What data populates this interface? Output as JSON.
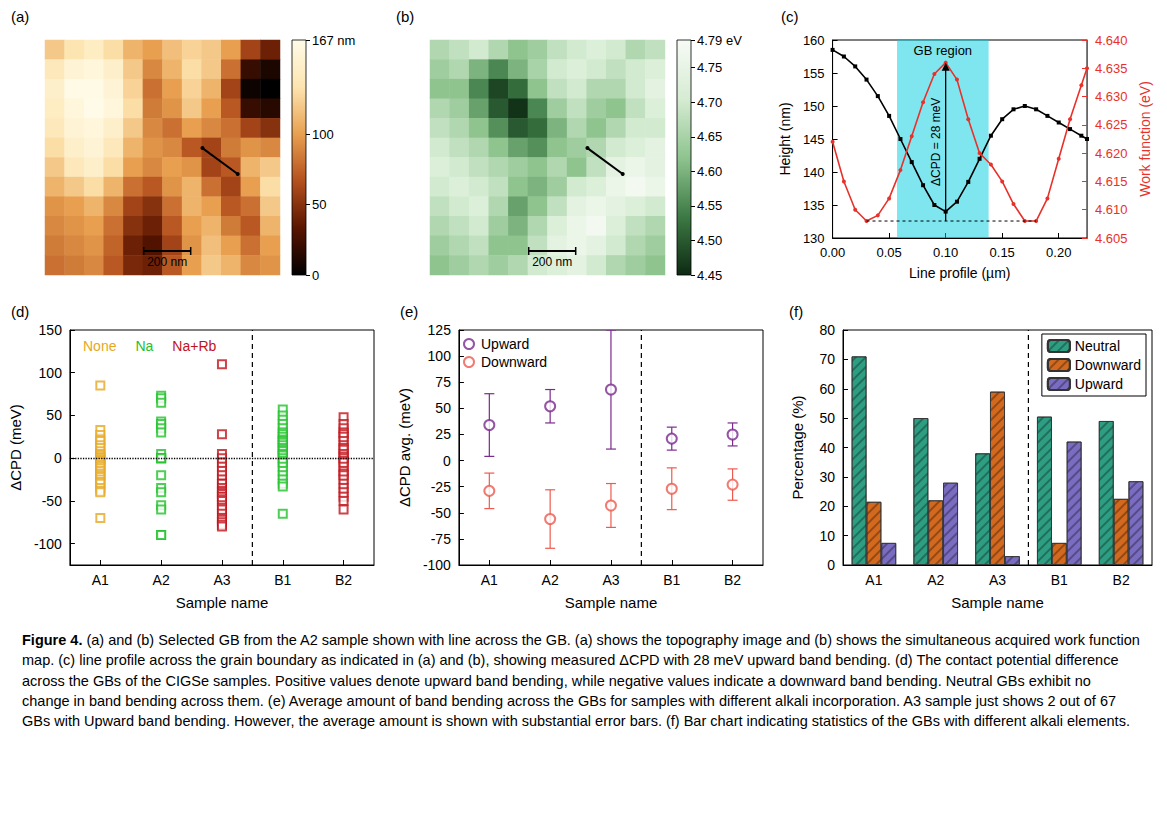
{
  "chart_data": [
    {
      "type": "heatmap",
      "panel": "(a)",
      "cells": [
        [
          120,
          135,
          145,
          130,
          110,
          100,
          115,
          125,
          120,
          100,
          60,
          40
        ],
        [
          140,
          155,
          160,
          150,
          120,
          90,
          110,
          130,
          120,
          80,
          20,
          10
        ],
        [
          150,
          165,
          165,
          155,
          125,
          80,
          100,
          125,
          110,
          60,
          5,
          0
        ],
        [
          145,
          160,
          167,
          160,
          130,
          85,
          95,
          120,
          100,
          70,
          20,
          15
        ],
        [
          140,
          155,
          160,
          150,
          120,
          90,
          80,
          100,
          90,
          80,
          60,
          50
        ],
        [
          130,
          150,
          155,
          140,
          110,
          95,
          90,
          70,
          60,
          85,
          95,
          90
        ],
        [
          120,
          140,
          150,
          130,
          100,
          90,
          100,
          95,
          60,
          70,
          110,
          120
        ],
        [
          110,
          120,
          130,
          110,
          80,
          70,
          95,
          110,
          80,
          60,
          100,
          130
        ],
        [
          95,
          100,
          110,
          90,
          60,
          50,
          80,
          110,
          100,
          70,
          80,
          120
        ],
        [
          90,
          95,
          100,
          80,
          50,
          40,
          70,
          100,
          110,
          85,
          70,
          110
        ],
        [
          85,
          90,
          95,
          75,
          40,
          30,
          60,
          95,
          115,
          100,
          80,
          100
        ],
        [
          80,
          85,
          90,
          70,
          45,
          40,
          70,
          100,
          120,
          110,
          90,
          95
        ]
      ],
      "colorbar": {
        "range": [
          0,
          167
        ],
        "ticks": [
          0,
          50,
          100,
          {
            "value": 167,
            "label": "167 nm"
          }
        ]
      },
      "field_of_view": [
        1000,
        1000
      ],
      "scale_bar": {
        "label": "200 nm",
        "length": 200
      },
      "profile_line": {
        "from": [
          670,
          460
        ],
        "to": [
          820,
          570
        ]
      }
    },
    {
      "type": "heatmap",
      "panel": "(b)",
      "cells": [
        [
          4.66,
          4.68,
          4.7,
          4.66,
          4.62,
          4.64,
          4.68,
          4.7,
          4.72,
          4.7,
          4.66,
          4.68
        ],
        [
          4.64,
          4.66,
          4.6,
          4.55,
          4.6,
          4.65,
          4.7,
          4.72,
          4.7,
          4.68,
          4.7,
          4.72
        ],
        [
          4.62,
          4.62,
          4.55,
          4.48,
          4.52,
          4.62,
          4.68,
          4.7,
          4.66,
          4.66,
          4.7,
          4.74
        ],
        [
          4.66,
          4.64,
          4.58,
          4.5,
          4.46,
          4.55,
          4.64,
          4.68,
          4.64,
          4.62,
          4.68,
          4.72
        ],
        [
          4.68,
          4.66,
          4.62,
          4.56,
          4.5,
          4.52,
          4.6,
          4.66,
          4.62,
          4.66,
          4.7,
          4.7
        ],
        [
          4.7,
          4.68,
          4.66,
          4.62,
          4.58,
          4.56,
          4.62,
          4.64,
          4.66,
          4.7,
          4.72,
          4.74
        ],
        [
          4.72,
          4.7,
          4.68,
          4.66,
          4.64,
          4.62,
          4.66,
          4.62,
          4.68,
          4.74,
          4.76,
          4.74
        ],
        [
          4.7,
          4.72,
          4.7,
          4.68,
          4.62,
          4.6,
          4.64,
          4.7,
          4.72,
          4.76,
          4.78,
          4.76
        ],
        [
          4.68,
          4.7,
          4.72,
          4.66,
          4.58,
          4.62,
          4.68,
          4.74,
          4.76,
          4.74,
          4.72,
          4.7
        ],
        [
          4.66,
          4.68,
          4.7,
          4.64,
          4.6,
          4.66,
          4.72,
          4.76,
          4.78,
          4.72,
          4.68,
          4.66
        ],
        [
          4.64,
          4.66,
          4.68,
          4.62,
          4.62,
          4.68,
          4.74,
          4.76,
          4.74,
          4.7,
          4.66,
          4.64
        ],
        [
          4.62,
          4.64,
          4.66,
          4.64,
          4.66,
          4.7,
          4.72,
          4.74,
          4.7,
          4.66,
          4.64,
          4.62
        ]
      ],
      "colorbar": {
        "range": [
          4.45,
          4.79
        ],
        "ticks": [
          4.45,
          {
            "value": 4.5,
            "label": "4.50"
          },
          4.55,
          {
            "value": 4.6,
            "label": "4.60"
          },
          4.65,
          {
            "value": 4.7,
            "label": "4.70"
          },
          4.75,
          {
            "value": 4.79,
            "label": "4.79 eV"
          }
        ]
      },
      "field_of_view": [
        1000,
        1000
      ],
      "scale_bar": {
        "label": "200 nm",
        "length": 200
      },
      "profile_line": {
        "from": [
          670,
          460
        ],
        "to": [
          820,
          570
        ]
      }
    },
    {
      "type": "line",
      "panel": "(c)",
      "x": [
        0,
        0.01,
        0.02,
        0.03,
        0.04,
        0.05,
        0.06,
        0.07,
        0.08,
        0.09,
        0.1,
        0.11,
        0.12,
        0.13,
        0.14,
        0.15,
        0.16,
        0.17,
        0.18,
        0.19,
        0.2,
        0.21,
        0.22,
        0.225
      ],
      "series": [
        {
          "color": "#000000",
          "marker": "square",
          "values": [
            158.5,
            157.5,
            156,
            154,
            151.5,
            148.5,
            145,
            141.5,
            138,
            135,
            134,
            135.5,
            138.5,
            142,
            145.5,
            148,
            149.5,
            150,
            149.5,
            148.5,
            147.5,
            146.5,
            145.5,
            145
          ]
        },
        {
          "color": "#e8312a",
          "marker": "circle",
          "axis": "y2",
          "values": [
            4.622,
            4.615,
            4.61,
            4.608,
            4.609,
            4.612,
            4.617,
            4.623,
            4.629,
            4.634,
            4.636,
            4.633,
            4.626,
            4.62,
            4.618,
            4.615,
            4.611,
            4.608,
            4.608,
            4.612,
            4.619,
            4.626,
            4.632,
            4.635
          ]
        }
      ],
      "xlabel": "Line profile (µm)",
      "ylabel": "Height (nm)",
      "y2label": "Work function (eV)",
      "xlim": [
        0,
        0.225
      ],
      "xticks": [
        {
          "value": 0,
          "label": "0.00"
        },
        0.05,
        {
          "value": 0.1,
          "label": "0.10"
        },
        0.15,
        {
          "value": 0.2,
          "label": "0.20"
        }
      ],
      "ylim": [
        130,
        160
      ],
      "yticks": [
        130,
        135,
        140,
        145,
        150,
        155,
        160
      ],
      "y2lim": [
        4.605,
        4.64
      ],
      "y2ticks": [
        4.605,
        {
          "value": 4.61,
          "label": "4.610"
        },
        4.615,
        {
          "value": 4.62,
          "label": "4.620"
        },
        4.625,
        {
          "value": 4.63,
          "label": "4.630"
        },
        4.635,
        {
          "value": 4.64,
          "label": "4.640"
        }
      ],
      "shaded_region": {
        "x": [
          0.057,
          0.138
        ],
        "label": "GB region"
      },
      "annotation": {
        "text": "ΔCPD = 28 meV",
        "x": 0.1,
        "y": [
          4.608,
          4.636
        ],
        "baseline_x": [
          0.03,
          0.18
        ],
        "axis": "y2"
      },
      "grid": false
    },
    {
      "type": "scatter",
      "panel": "(d)",
      "categories": [
        "A1",
        "A2",
        "A3",
        "B1",
        "B2"
      ],
      "groups": [
        [
          "A1",
          "A2",
          "A3"
        ],
        [
          "B1",
          "B2"
        ]
      ],
      "series": [
        {
          "name": "None",
          "color": "#e6a820",
          "values": [
            [
              85,
              33,
              27,
              22,
              20,
              15,
              12,
              8,
              5,
              3,
              1,
              0,
              -2,
              -3,
              -5,
              -8,
              -10,
              -12,
              -15,
              -18,
              -20,
              -22,
              -25,
              -28,
              -30,
              -35,
              -38,
              -40,
              -70
            ],
            [],
            [],
            [],
            []
          ]
        },
        {
          "name": "Na",
          "color": "#22c22a",
          "values": [
            [],
            [
              73,
              70,
              65,
              43,
              40,
              35,
              30,
              5,
              0,
              0,
              0,
              -20,
              -35,
              -40,
              -55,
              -60,
              -90,
              -90
            ],
            [],
            [
              57,
              50,
              45,
              40,
              35,
              30,
              28,
              25,
              22,
              20,
              18,
              15,
              12,
              10,
              8,
              5,
              3,
              0,
              -3,
              -5,
              -10,
              -15,
              -20,
              -25,
              -30,
              -33,
              -65
            ],
            []
          ]
        },
        {
          "name": "Na+Rb",
          "color": "#c0141c",
          "values": [
            [],
            [],
            [
              110,
              28,
              5,
              0,
              -5,
              -10,
              -15,
              -20,
              -25,
              -30,
              -30,
              -35,
              -38,
              -40,
              -42,
              -45,
              -45,
              -48,
              -50,
              -55,
              -58,
              -60,
              -65,
              -70,
              -72,
              -75,
              -78,
              -80
            ],
            [],
            [
              48,
              40,
              35,
              30,
              28,
              25,
              20,
              15,
              12,
              10,
              5,
              2,
              0,
              -3,
              -5,
              -10,
              -15,
              -18,
              -20,
              -25,
              -30,
              -35,
              -40,
              -45,
              -50,
              -60
            ]
          ]
        }
      ],
      "xlabel": "Sample name",
      "ylabel": "ΔCPD (meV)",
      "ylim": [
        -125,
        150
      ],
      "yticks": [
        -100,
        -50,
        0,
        50,
        100,
        150
      ],
      "reference_line": 0,
      "marker": "open square",
      "legend": "upper left",
      "grid": false
    },
    {
      "type": "scatter",
      "panel": "(e)",
      "categories": [
        "A1",
        "A2",
        "A3",
        "B1",
        "B2"
      ],
      "groups": [
        [
          "A1",
          "A2",
          "A3"
        ],
        [
          "B1",
          "B2"
        ]
      ],
      "series": [
        {
          "name": "Upward",
          "color": "#7b2a8e",
          "values": [
            34,
            52,
            68,
            21,
            25
          ],
          "errors": [
            30,
            16,
            57,
            11,
            11
          ]
        },
        {
          "name": "Downward",
          "color": "#ee5a4f",
          "values": [
            -29,
            -56,
            -43,
            -27,
            -23
          ],
          "errors": [
            17,
            28,
            21,
            20,
            15
          ]
        }
      ],
      "xlabel": "Sample name",
      "ylabel": "ΔCPD avg. (meV)",
      "ylim": [
        -100,
        125
      ],
      "yticks": [
        -100,
        -75,
        -50,
        -25,
        0,
        25,
        50,
        75,
        100,
        125
      ],
      "marker": "open circle",
      "legend": "upper left",
      "grid": false
    },
    {
      "type": "bar",
      "panel": "(f)",
      "categories": [
        "A1",
        "A2",
        "A3",
        "B1",
        "B2"
      ],
      "groups": [
        [
          "A1",
          "A2",
          "A3"
        ],
        [
          "B1",
          "B2"
        ]
      ],
      "series": [
        {
          "name": "Neutral",
          "color": "#2e9e82",
          "values": [
            71,
            50,
            38,
            50.5,
            49
          ]
        },
        {
          "name": "Downward",
          "color": "#d2691e",
          "values": [
            21.5,
            22,
            59,
            7.5,
            22.5
          ]
        },
        {
          "name": "Upward",
          "color": "#7a6cc0",
          "values": [
            7.5,
            28,
            3,
            42,
            28.5
          ]
        }
      ],
      "xlabel": "Sample name",
      "ylabel": "Percentage (%)",
      "ylim": [
        0,
        80
      ],
      "yticks": [
        0,
        10,
        20,
        30,
        40,
        50,
        60,
        70,
        80
      ],
      "legend": "upper right",
      "grid": false
    }
  ],
  "caption": {
    "label": "Figure 4.",
    "text": "(a) and (b) Selected GB from the A2 sample shown with line across the GB. (a) shows the topography image and (b) shows the simultaneous acquired work function map. (c) line profile across the grain boundary as indicated in (a) and (b), showing measured ΔCPD with 28 meV upward band bending. (d) The contact potential difference across the GBs of the CIGSe samples. Positive values denote upward band bending, while negative values indicate a downward band bending. Neutral GBs exhibit no change in band bending across them. (e) Average amount of band bending across the GBs for samples with different alkali incorporation. A3 sample just shows 2 out of 67 GBs with Upward band bending. However, the average amount is shown with substantial error bars. (f) Bar chart indicating statistics of the GBs with different alkali elements."
  }
}
